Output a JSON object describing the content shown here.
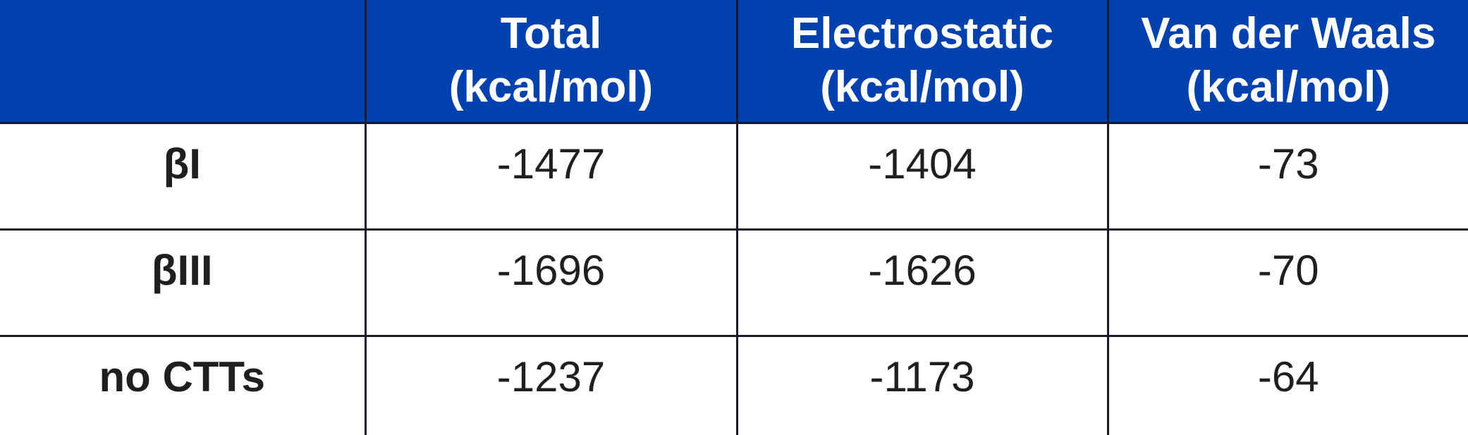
{
  "table": {
    "headers": [
      {
        "line1": "",
        "line2": ""
      },
      {
        "line1": "Total",
        "line2": "(kcal/mol)"
      },
      {
        "line1": "Electrostatic",
        "line2": "(kcal/mol)"
      },
      {
        "line1": "Van der Waals",
        "line2": "(kcal/mol)"
      }
    ],
    "rows": [
      {
        "label": "βI",
        "total": "-1477",
        "electrostatic": "-1404",
        "vdw": "-73"
      },
      {
        "label": "βIII",
        "total": "-1696",
        "electrostatic": "-1626",
        "vdw": "-70"
      },
      {
        "label": "no CTTs",
        "total": "-1237",
        "electrostatic": "-1173",
        "vdw": "-64"
      }
    ]
  },
  "colors": {
    "header_background": "#0041ad",
    "header_text": "#ffffff",
    "cell_text": "#1f1f1f",
    "grid_lines": "#1a1a2e"
  }
}
